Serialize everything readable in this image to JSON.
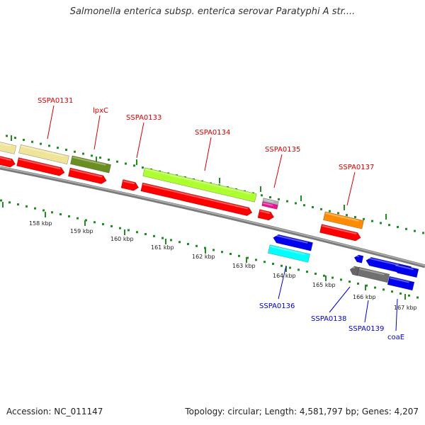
{
  "title": "Salmonella enterica subsp. enterica serovar Paratyphi A str....",
  "footer": {
    "accession": "Accession: NC_011147",
    "summary": "Topology: circular; Length: 4,581,797 bp; Genes: 4,207"
  },
  "colors": {
    "label_forward": "#d40000",
    "label_reverse": "#0000cc",
    "tick": "#228b22",
    "backbone": "#808080"
  },
  "kbp_labels": [
    "158 kbp",
    "159 kbp",
    "160 kbp",
    "161 kbp",
    "162 kbp",
    "163 kbp",
    "164 kbp",
    "165 kbp",
    "166 kbp",
    "167 kbp"
  ],
  "gene_labels": {
    "forward": [
      "SSPA0131",
      "lpxC",
      "SSPA0133",
      "SSPA0134",
      "SSPA0135",
      "SSPA0137"
    ],
    "reverse": [
      "SSPA0136",
      "SSPA0138",
      "SSPA0139",
      "coaE"
    ]
  }
}
